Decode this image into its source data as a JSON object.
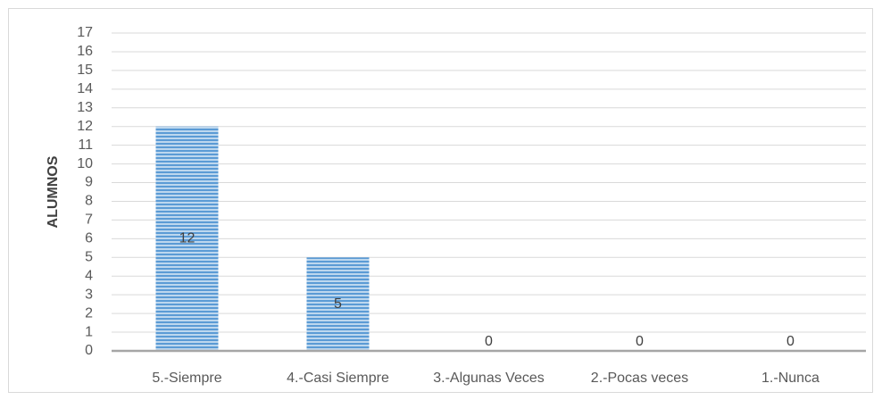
{
  "chart_data": {
    "type": "bar",
    "y_label": "ALUMNOS",
    "categories": [
      "5.-Siempre",
      "4.-Casi Siempre",
      "3.-Algunas Veces",
      "2.-Pocas veces",
      "1.-Nunca"
    ],
    "values": [
      12,
      5,
      0,
      0,
      0
    ],
    "color": "#5b9bd5",
    "ylim": [
      0,
      17
    ],
    "yticks": [
      0,
      1,
      2,
      3,
      4,
      5,
      6,
      7,
      8,
      9,
      10,
      11,
      12,
      13,
      14,
      15,
      16,
      17
    ],
    "grid": true
  }
}
